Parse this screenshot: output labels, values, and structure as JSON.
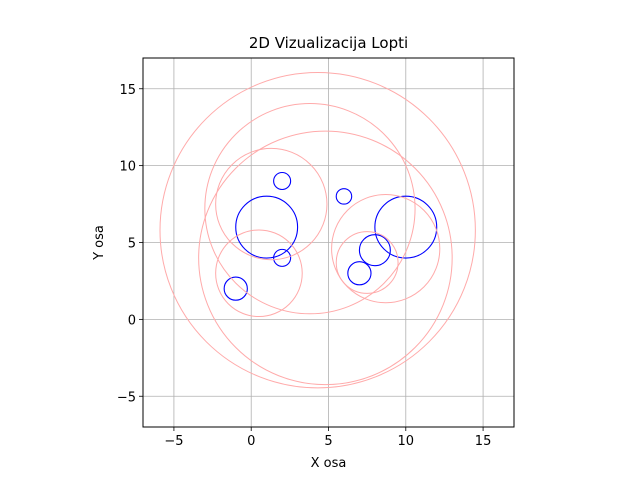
{
  "chart_data": {
    "type": "scatter",
    "title": "2D Vizualizacija Lopti",
    "xlabel": "X osa",
    "ylabel": "Y osa",
    "xlim": [
      -7,
      17
    ],
    "ylim": [
      -7,
      17
    ],
    "xticks": [
      -5,
      0,
      5,
      10,
      15
    ],
    "yticks": [
      -5,
      0,
      5,
      10,
      15
    ],
    "xtick_labels": [
      "−5",
      "0",
      "5",
      "10",
      "15"
    ],
    "ytick_labels": [
      "−5",
      "0",
      "5",
      "10",
      "15"
    ],
    "grid": true,
    "series": [
      {
        "color": "#0000ff",
        "circles": [
          {
            "x": 1,
            "y": 6,
            "r": 2
          },
          {
            "x": 2,
            "y": 9,
            "r": 0.55
          },
          {
            "x": 2,
            "y": 4,
            "r": 0.55
          },
          {
            "x": -1,
            "y": 2,
            "r": 0.75
          },
          {
            "x": 6,
            "y": 8,
            "r": 0.5
          },
          {
            "x": 10,
            "y": 6,
            "r": 2
          },
          {
            "x": 8,
            "y": 4.5,
            "r": 1
          },
          {
            "x": 7,
            "y": 3,
            "r": 0.75
          }
        ]
      },
      {
        "color": "#ffaaaa",
        "circles": [
          {
            "x": 4.3,
            "y": 5.8,
            "r": 10.2
          },
          {
            "x": 3.8,
            "y": 7.2,
            "r": 6.8
          },
          {
            "x": 4.8,
            "y": 4.0,
            "r": 8.2
          },
          {
            "x": 1.3,
            "y": 7.5,
            "r": 3.6
          },
          {
            "x": 0.5,
            "y": 3.0,
            "r": 2.8
          },
          {
            "x": 8.7,
            "y": 4.6,
            "r": 3.5
          },
          {
            "x": 7.5,
            "y": 3.7,
            "r": 2.0
          }
        ]
      }
    ]
  }
}
